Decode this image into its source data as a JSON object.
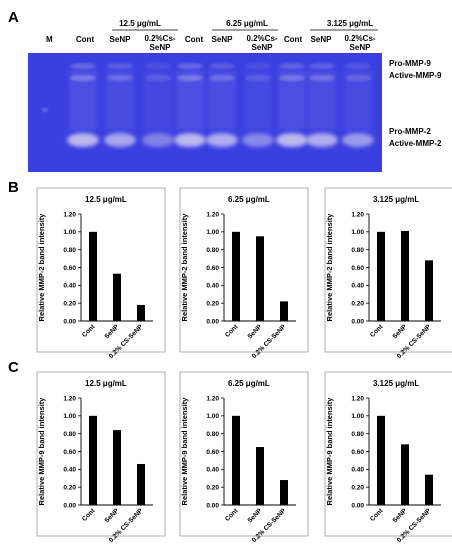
{
  "panels": {
    "a": "A",
    "b": "B",
    "c": "C"
  },
  "gel": {
    "marker_label": "M",
    "groups": [
      {
        "concentration": "12.5 μg/mL",
        "lanes": [
          "Cont",
          "SeNP",
          "0.2%Cs-",
          "SeNP"
        ]
      },
      {
        "concentration": "6.25 μg/mL",
        "lanes": [
          "Cont",
          "SeNP",
          "0.2%Cs-",
          "SeNP"
        ]
      },
      {
        "concentration": "3.125 μg/mL",
        "lanes": [
          "Cont",
          "SeNP",
          "0.2%Cs-",
          "SeNP"
        ]
      }
    ],
    "band_labels": [
      "Pro-MMP-9",
      "Active-MMP-9",
      "Pro-MMP-2",
      "Active-MMP-2"
    ],
    "colors": {
      "gel_background": "#3a3fe0",
      "band": "#c9c6f0"
    }
  },
  "chart_data": [
    {
      "type": "bar",
      "title": "12.5 μg/mL",
      "ylabel": "Relative MMP-2 band intensity",
      "categories": [
        "Cont",
        "SeNP",
        "0.2% CS-SeNP"
      ],
      "values": [
        1.0,
        0.53,
        0.18
      ],
      "ylim": [
        0,
        1.2
      ],
      "yticks": [
        "0.00",
        "0.20",
        "0.40",
        "0.60",
        "0.80",
        "1.00",
        "1.20"
      ]
    },
    {
      "type": "bar",
      "title": "6.25 μg/mL",
      "ylabel": "Relative MMP-2 band intensity",
      "categories": [
        "Cont",
        "SeNP",
        "0.2% CS-SeNP"
      ],
      "values": [
        1.0,
        0.95,
        0.22
      ],
      "ylim": [
        0,
        1.2
      ],
      "yticks": [
        "0.00",
        "0.20",
        "0.40",
        "0.60",
        "0.80",
        "1.00",
        "1.20"
      ]
    },
    {
      "type": "bar",
      "title": "3.125 μg/mL",
      "ylabel": "Relative MMP-2 band intensity",
      "categories": [
        "Cont",
        "SeNP",
        "0.2% CS-SeNP"
      ],
      "values": [
        1.0,
        1.01,
        0.68
      ],
      "ylim": [
        0,
        1.2
      ],
      "yticks": [
        "0.00",
        "0.20",
        "0.40",
        "0.60",
        "0.80",
        "1.00",
        "1.20"
      ]
    },
    {
      "type": "bar",
      "title": "12.5 μg/mL",
      "ylabel": "Relative MMP-9 band intensity",
      "categories": [
        "Cont",
        "SeNP",
        "0.2% CS-SeNP"
      ],
      "values": [
        1.0,
        0.84,
        0.46
      ],
      "ylim": [
        0,
        1.2
      ],
      "yticks": [
        "0.00",
        "0.20",
        "0.40",
        "0.60",
        "0.80",
        "1.00",
        "1.20"
      ]
    },
    {
      "type": "bar",
      "title": "6.25 μg/mL",
      "ylabel": "Relative MMP-9 band intensity",
      "categories": [
        "Cont",
        "SeNP",
        "0.2% CS-SeNP"
      ],
      "values": [
        1.0,
        0.65,
        0.28
      ],
      "ylim": [
        0,
        1.2
      ],
      "yticks": [
        "0.00",
        "0.20",
        "0.40",
        "0.60",
        "0.80",
        "1.00",
        "1.20"
      ]
    },
    {
      "type": "bar",
      "title": "3.125 μg/mL",
      "ylabel": "Relative MMP-9 band intensity",
      "categories": [
        "Cont",
        "SeNP",
        "0.2% CS-SeNP"
      ],
      "values": [
        1.0,
        0.68,
        0.34
      ],
      "ylim": [
        0,
        1.2
      ],
      "yticks": [
        "0.00",
        "0.20",
        "0.40",
        "0.60",
        "0.80",
        "1.00",
        "1.20"
      ]
    }
  ]
}
